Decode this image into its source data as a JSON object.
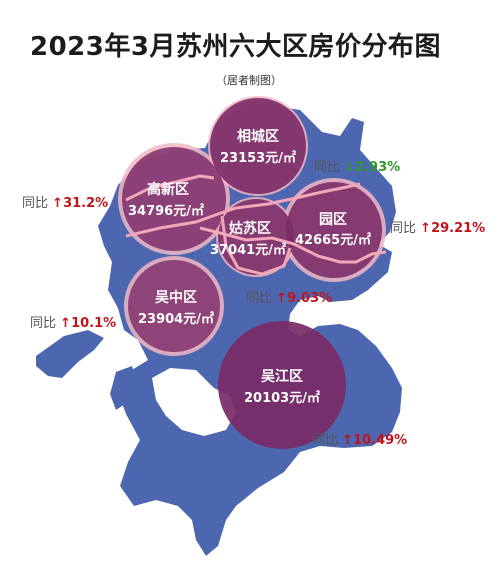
{
  "title": "2023年3月苏州六大区房价分布图",
  "subtitle": "（居者制图）",
  "colors": {
    "land": "#4d66b0",
    "circle_pink": "#f2b7c4",
    "circle_purple": "#7a2a66",
    "up": "#c0141c",
    "down": "#2a9a2a"
  },
  "districts": [
    {
      "name": "相城区",
      "price": "23153元/㎡",
      "yoy_label": "同比",
      "yoy_arrow": "↓",
      "yoy_value": "2.93%",
      "trend": "down"
    },
    {
      "name": "高新区",
      "price": "34796元/㎡",
      "yoy_label": "同比",
      "yoy_arrow": "↑",
      "yoy_value": "31.2%",
      "trend": "up"
    },
    {
      "name": "姑苏区",
      "price": "37041元/㎡",
      "yoy_label": "同比",
      "yoy_arrow": "↑",
      "yoy_value": "9.03%",
      "trend": "up"
    },
    {
      "name": "园区",
      "price": "42665元/㎡",
      "yoy_label": "同比",
      "yoy_arrow": "↑",
      "yoy_value": "29.21%",
      "trend": "up"
    },
    {
      "name": "吴中区",
      "price": "23904元/㎡",
      "yoy_label": "同比",
      "yoy_arrow": "↑",
      "yoy_value": "10.1%",
      "trend": "up"
    },
    {
      "name": "吴江区",
      "price": "20103元/㎡",
      "yoy_label": "同比",
      "yoy_arrow": "↑",
      "yoy_value": "10.49%",
      "trend": "up"
    }
  ]
}
